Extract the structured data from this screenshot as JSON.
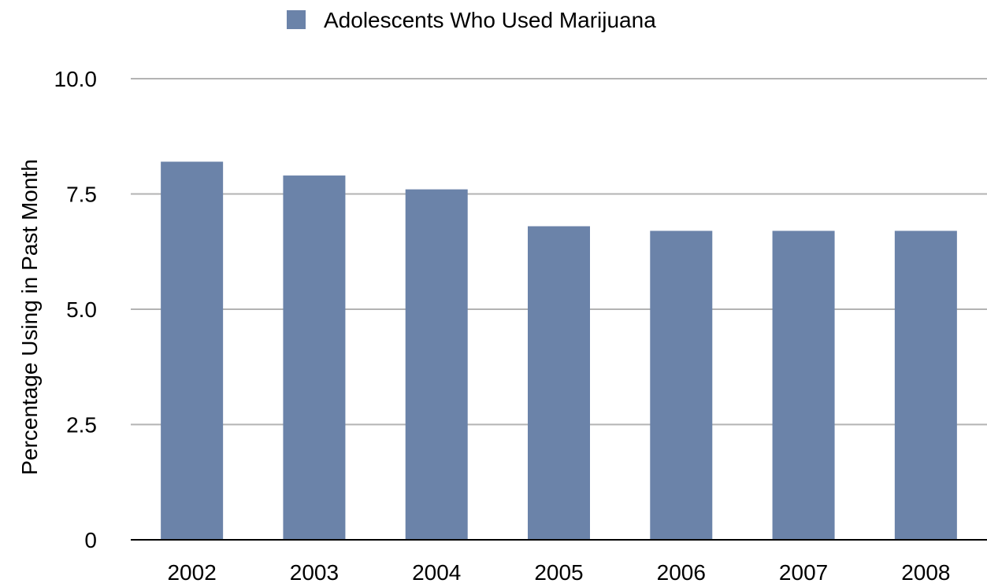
{
  "chart_data": {
    "type": "bar",
    "categories": [
      "2002",
      "2003",
      "2004",
      "2005",
      "2006",
      "2007",
      "2008"
    ],
    "series": [
      {
        "name": "Adolescents Who Used Marijuana",
        "values": [
          8.2,
          7.9,
          7.6,
          6.8,
          6.7,
          6.7,
          6.7
        ],
        "color": "#6b83a9"
      }
    ],
    "ylabel": "Percentage Using in Past Month",
    "xlabel": "",
    "ylim": [
      0,
      10
    ],
    "yticks": [
      0,
      2.5,
      5,
      7.5,
      10
    ],
    "ytick_labels": [
      "0",
      "2.5",
      "5.0",
      "7.5",
      "10.0"
    ],
    "grid": true,
    "grid_color": "#b3b3b3",
    "axis_color": "#000000",
    "legend_position": "top-center"
  }
}
